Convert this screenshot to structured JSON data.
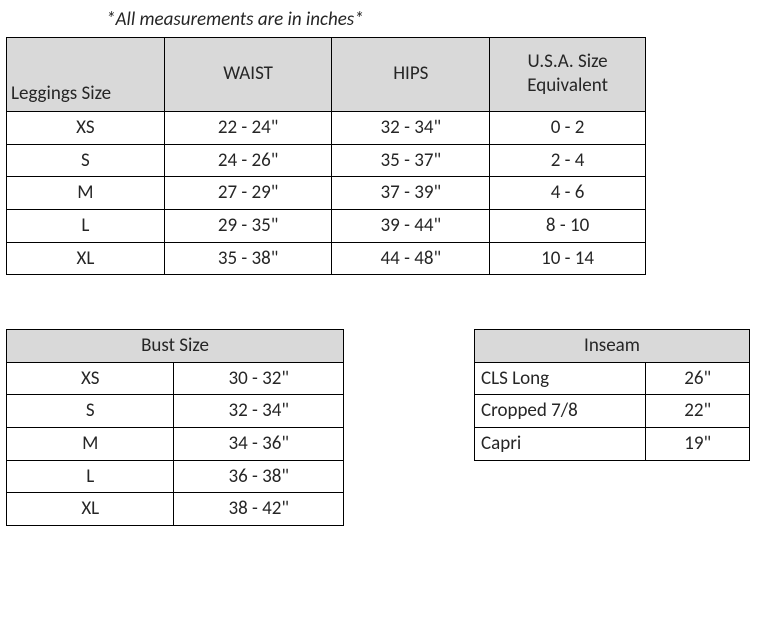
{
  "note": "*All measurements are in inches*",
  "leggings": {
    "headers": {
      "size": "Leggings Size",
      "waist": "WAIST",
      "hips": "HIPS",
      "us": "U.S.A. Size Equivalent"
    },
    "rows": [
      {
        "size": "XS",
        "waist": "22 - 24\"",
        "hips": "32 - 34\"",
        "us": "0 - 2"
      },
      {
        "size": "S",
        "waist": "24 - 26\"",
        "hips": "35 - 37\"",
        "us": "2 - 4"
      },
      {
        "size": "M",
        "waist": "27 - 29\"",
        "hips": "37 - 39\"",
        "us": "4 - 6"
      },
      {
        "size": "L",
        "waist": "29 - 35\"",
        "hips": "39 - 44\"",
        "us": "8 - 10"
      },
      {
        "size": "XL",
        "waist": "35 - 38\"",
        "hips": "44 - 48\"",
        "us": "10 - 14"
      }
    ]
  },
  "bust": {
    "header": "Bust Size",
    "rows": [
      {
        "size": "XS",
        "range": "30 - 32\""
      },
      {
        "size": "S",
        "range": "32 - 34\""
      },
      {
        "size": "M",
        "range": "34 - 36\""
      },
      {
        "size": "L",
        "range": "36 - 38\""
      },
      {
        "size": "XL",
        "range": "38 - 42\""
      }
    ]
  },
  "inseam": {
    "header": "Inseam",
    "rows": [
      {
        "label": "CLS Long",
        "value": "26\""
      },
      {
        "label": "Cropped 7/8",
        "value": "22\""
      },
      {
        "label": "Capri",
        "value": "19\""
      }
    ]
  },
  "colors": {
    "header_bg": "#d9d9d9",
    "border": "#000000",
    "text": "#262626",
    "background": "#ffffff"
  }
}
